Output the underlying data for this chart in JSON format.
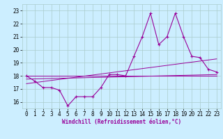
{
  "xlabel": "Windchill (Refroidissement éolien,°C)",
  "hours": [
    0,
    1,
    2,
    3,
    4,
    5,
    6,
    7,
    8,
    9,
    10,
    11,
    12,
    13,
    14,
    15,
    16,
    17,
    18,
    19,
    20,
    21,
    22,
    23
  ],
  "temp_line": [
    18.0,
    17.6,
    17.1,
    17.1,
    16.9,
    15.7,
    16.4,
    16.4,
    16.4,
    17.1,
    18.1,
    18.1,
    18.0,
    19.5,
    21.0,
    22.8,
    20.4,
    21.0,
    22.8,
    21.0,
    19.5,
    19.4,
    18.5,
    18.3
  ],
  "trend1_y": [
    18.0,
    18.0
  ],
  "trend2_y": [
    17.4,
    19.3
  ],
  "trend3_y": [
    17.75,
    18.1
  ],
  "line_color": "#990099",
  "bg_color": "#cceeff",
  "grid_color": "#aacccc",
  "ylim": [
    15.5,
    23.5
  ],
  "yticks": [
    16,
    17,
    18,
    19,
    20,
    21,
    22,
    23
  ],
  "xticks": [
    0,
    1,
    2,
    3,
    4,
    5,
    6,
    7,
    8,
    9,
    10,
    11,
    12,
    13,
    14,
    15,
    16,
    17,
    18,
    19,
    20,
    21,
    22,
    23
  ],
  "xlabel_fontsize": 5.5,
  "tick_fontsize": 5.5
}
